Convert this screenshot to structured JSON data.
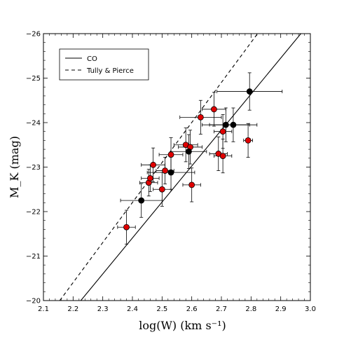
{
  "chart_data": {
    "type": "scatter",
    "xlabel": "log(W)  (km s⁻¹)",
    "ylabel": "M_K  (mag)",
    "xlim": [
      2.1,
      3.0
    ],
    "ylim": [
      -20,
      -26
    ],
    "y_inverted": true,
    "xticks": [
      "2.1",
      "2.2",
      "2.3",
      "2.4",
      "2.5",
      "2.6",
      "2.7",
      "2.8",
      "2.9",
      "3.0"
    ],
    "yticks": [
      "−26",
      "−25",
      "−24",
      "−23",
      "−22",
      "−21",
      "−20"
    ],
    "legend": {
      "position": "top-left",
      "entries": [
        {
          "label": "CO",
          "style": "solid"
        },
        {
          "label": "Tully & Pierce",
          "style": "dashed"
        }
      ]
    },
    "lines": [
      {
        "label": "CO",
        "style": "solid",
        "x": [
          2.226,
          2.968
        ],
        "y": [
          -20.0,
          -26.0
        ]
      },
      {
        "label": "Tully & Pierce",
        "style": "dashed",
        "x": [
          2.155,
          2.822
        ],
        "y": [
          -20.0,
          -26.0
        ]
      }
    ],
    "colors": {
      "red_points": "#e00000",
      "black_points": "#000000",
      "errorbar": "#000000"
    },
    "series": [
      {
        "marker_color": "red",
        "points": [
          {
            "x": 2.38,
            "y": -21.65,
            "xerr": 0.03,
            "yerr": 0.38
          },
          {
            "x": 2.455,
            "y": -22.65,
            "xerr": 0.03,
            "yerr": 0.3
          },
          {
            "x": 2.46,
            "y": -22.75,
            "xerr": 0.03,
            "yerr": 0.3
          },
          {
            "x": 2.47,
            "y": -23.05,
            "xerr": 0.04,
            "yerr": 0.38
          },
          {
            "x": 2.5,
            "y": -22.5,
            "xerr": 0.03,
            "yerr": 0.38
          },
          {
            "x": 2.51,
            "y": -22.92,
            "xerr": 0.03,
            "yerr": 0.3
          },
          {
            "x": 2.53,
            "y": -23.28,
            "xerr": 0.04,
            "yerr": 0.38
          },
          {
            "x": 2.58,
            "y": -23.5,
            "xerr": 0.04,
            "yerr": 0.38
          },
          {
            "x": 2.595,
            "y": -23.45,
            "xerr": 0.04,
            "yerr": 0.38
          },
          {
            "x": 2.6,
            "y": -22.6,
            "xerr": 0.03,
            "yerr": 0.38
          },
          {
            "x": 2.63,
            "y": -24.12,
            "xerr": 0.07,
            "yerr": 0.38
          },
          {
            "x": 2.675,
            "y": -24.3,
            "xerr": 0.04,
            "yerr": 0.38
          },
          {
            "x": 2.69,
            "y": -23.3,
            "xerr": 0.03,
            "yerr": 0.38
          },
          {
            "x": 2.705,
            "y": -23.25,
            "xerr": 0.03,
            "yerr": 0.38
          },
          {
            "x": 2.705,
            "y": -23.8,
            "xerr": 0.03,
            "yerr": 0.38
          },
          {
            "x": 2.79,
            "y": -23.6,
            "xerr": 0.015,
            "yerr": 0.38
          }
        ]
      },
      {
        "marker_color": "black",
        "points": [
          {
            "x": 2.43,
            "y": -22.25,
            "xerr": 0.07,
            "yerr": 0.38
          },
          {
            "x": 2.53,
            "y": -22.88,
            "xerr": 0.08,
            "yerr": 0.38
          },
          {
            "x": 2.59,
            "y": -23.35,
            "xerr": 0.06,
            "yerr": 0.38
          },
          {
            "x": 2.715,
            "y": -23.95,
            "xerr": 0.08,
            "yerr": 0.38
          },
          {
            "x": 2.74,
            "y": -23.95,
            "xerr": 0.08,
            "yerr": 0.38
          },
          {
            "x": 2.795,
            "y": -24.7,
            "xerr": 0.11,
            "yerr": 0.42
          }
        ]
      }
    ]
  }
}
